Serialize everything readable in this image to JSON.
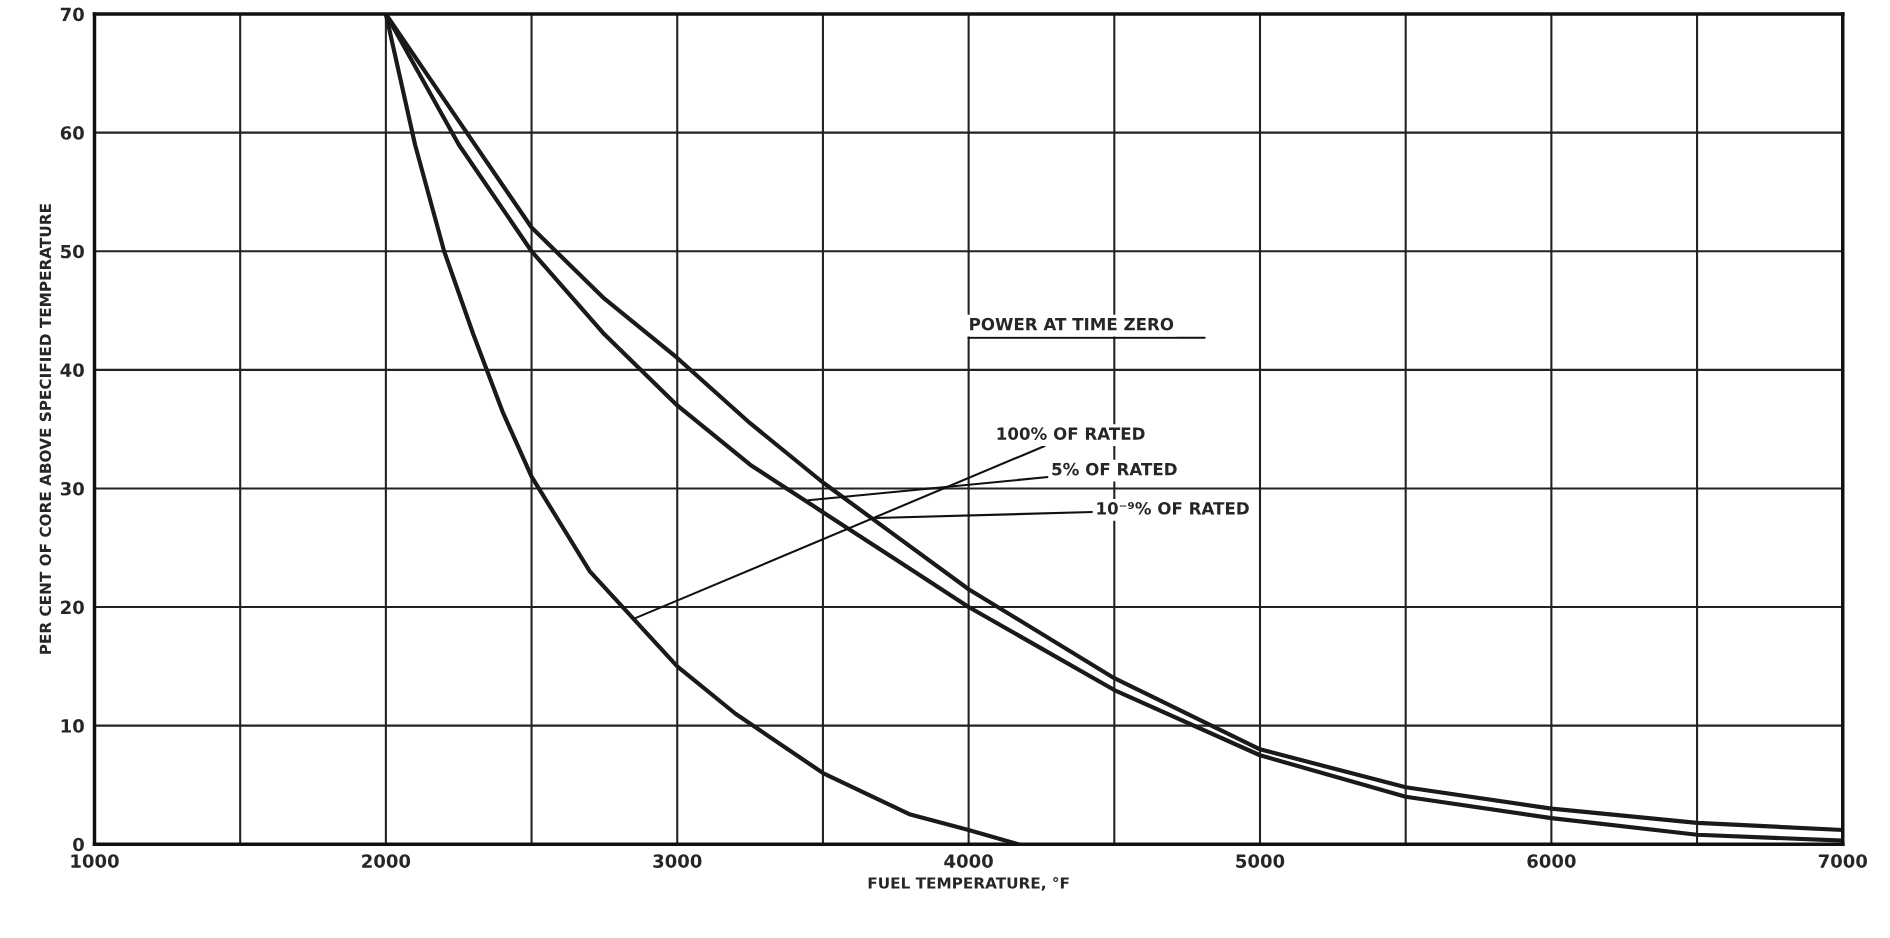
{
  "chart_data": {
    "type": "line",
    "xlabel": "FUEL TEMPERATURE, °F",
    "ylabel": "PER CENT OF CORE ABOVE SPECIFIED TEMPERATURE",
    "xlim": [
      1000,
      7000
    ],
    "ylim": [
      0,
      70
    ],
    "xticks": [
      1000,
      {
        "value": 1500,
        "label": null
      },
      2000,
      {
        "value": 2500,
        "label": null
      },
      3000,
      {
        "value": 3500,
        "label": null
      },
      4000,
      {
        "value": 4500,
        "label": null
      },
      5000,
      {
        "value": 5500,
        "label": null
      },
      6000,
      {
        "value": 6500,
        "label": null
      },
      7000
    ],
    "yticks": [
      0,
      10,
      20,
      30,
      40,
      50,
      60,
      70
    ],
    "grid": true,
    "marker": "none",
    "line_style": "solid",
    "series": [
      {
        "color": "#1a1a1a",
        "x": [
          2000,
          2100,
          2200,
          2300,
          2400,
          2500,
          2600,
          2700,
          2850,
          3000,
          3200,
          3500,
          3800,
          4000,
          4170
        ],
        "values": [
          70,
          59,
          50,
          43,
          36.5,
          31,
          27,
          23,
          19,
          15,
          11,
          6,
          2.5,
          1.2,
          0
        ]
      },
      {
        "color": "#1a1a1a",
        "x": [
          2000,
          2250,
          2500,
          2750,
          3000,
          3250,
          3500,
          3750,
          4000,
          4500,
          5000,
          5500,
          6000,
          6500,
          7000
        ],
        "values": [
          70,
          59,
          50,
          43,
          37,
          32,
          28,
          24,
          20,
          13,
          7.5,
          4,
          2.2,
          0.8,
          0.3
        ]
      },
      {
        "color": "#1a1a1a",
        "x": [
          2000,
          2250,
          2500,
          2750,
          3000,
          3250,
          3500,
          3750,
          4000,
          4500,
          5000,
          5500,
          6000,
          6500,
          7000
        ],
        "values": [
          70,
          61,
          52,
          46,
          41,
          35.5,
          30.5,
          26,
          21.5,
          14,
          8,
          4.8,
          3,
          1.8,
          1.2
        ]
      }
    ],
    "annotations": [
      "POWER AT TIME ZERO",
      {
        "text": "100% OF RATED",
        "x": 2850,
        "y": 19
      },
      {
        "text": "5% OF RATED",
        "x": 3450,
        "y": 29
      },
      {
        "text": "10⁻⁹% OF RATED",
        "x": 3680,
        "y": 27.5
      }
    ]
  }
}
